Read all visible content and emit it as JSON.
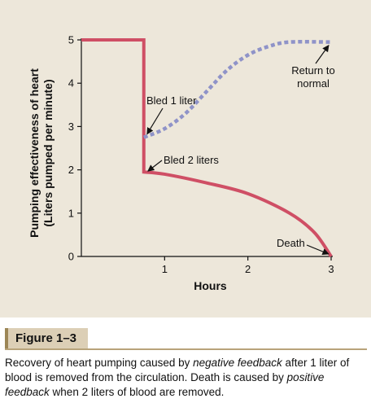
{
  "figure_label": "Figure 1–3",
  "caption": {
    "part1": "Recovery of heart pumping caused by ",
    "em1": "negative feedback",
    "part2": " after 1 liter of blood is removed from the circulation. Death is caused by ",
    "em2": "positive feedback",
    "part3": " when 2 liters of blood are removed."
  },
  "colors": {
    "panel_bg": "#ede7da",
    "solid_line": "#cf4f65",
    "dashed_line": "#8f93c8",
    "tag_bg": "#dccfb6"
  },
  "chart_data": {
    "type": "line",
    "xlabel": "Hours",
    "ylabel_line1": "Pumping effectiveness of heart",
    "ylabel_line2": "(Liters pumped per minute)",
    "xlim": [
      0,
      3
    ],
    "ylim": [
      0,
      5
    ],
    "x_ticks": [
      1,
      2,
      3
    ],
    "x_tick_labels": [
      "1",
      "2",
      "3"
    ],
    "y_ticks": [
      0,
      1,
      2,
      3,
      4,
      5
    ],
    "y_tick_labels": [
      "0",
      "1",
      "2",
      "3",
      "4",
      "5"
    ],
    "grid": false,
    "series": [
      {
        "style": "solid",
        "points": [
          [
            0,
            5
          ],
          [
            0.75,
            5
          ],
          [
            0.75,
            1.95
          ],
          [
            1.0,
            1.9
          ],
          [
            1.5,
            1.7
          ],
          [
            2.0,
            1.45
          ],
          [
            2.5,
            1.0
          ],
          [
            2.8,
            0.55
          ],
          [
            3.0,
            0.0
          ]
        ]
      },
      {
        "style": "dashed",
        "points": [
          [
            0.75,
            2.75
          ],
          [
            1.0,
            2.95
          ],
          [
            1.25,
            3.3
          ],
          [
            1.5,
            3.8
          ],
          [
            1.75,
            4.3
          ],
          [
            2.0,
            4.65
          ],
          [
            2.25,
            4.85
          ],
          [
            2.5,
            4.95
          ],
          [
            3.0,
            4.95
          ]
        ]
      }
    ],
    "annotations": [
      {
        "name": "bled-1-liter",
        "text": "Bled 1 liter",
        "point": [
          0.75,
          2.75
        ]
      },
      {
        "name": "bled-2-liters",
        "text": "Bled 2 liters",
        "point": [
          0.75,
          1.95
        ]
      },
      {
        "name": "return-to-normal",
        "line1": "Return to",
        "line2": "normal",
        "point": [
          3.0,
          4.95
        ]
      },
      {
        "name": "death",
        "text": "Death",
        "point": [
          3.0,
          0.0
        ]
      }
    ]
  }
}
